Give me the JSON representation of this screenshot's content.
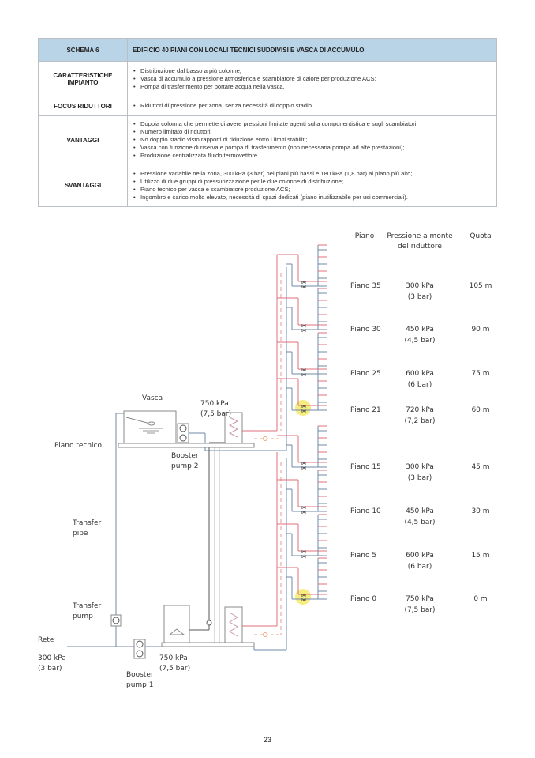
{
  "table": {
    "header": {
      "label": "SCHEMA 6",
      "title": "EDIFICIO 40 PIANI CON LOCALI TECNICI SUDDIVISI E VASCA DI ACCUMULO"
    },
    "rows": [
      {
        "label": "CARATTERISTICHE IMPIANTO",
        "items": [
          "Distribuzione dal basso a più colonne;",
          "Vasca di accumulo a pressione atmosferica e scambiatore di calore per produzione ACS;",
          "Pompa di trasferimento per portare acqua nella vasca."
        ]
      },
      {
        "label": "FOCUS RIDUTTORI",
        "items": [
          "Riduttori di pressione per zona, senza necessità di doppio stadio."
        ]
      },
      {
        "label": "VANTAGGI",
        "items": [
          "Doppia colonna che permette di avere pressioni limitate agenti sulla componentistica e sugli scambiatori;",
          "Numero limitato di riduttori;",
          "No doppio stadio visto rapporti di riduzione entro i limiti stabiliti;",
          "Vasca con funzione di riserva e pompa di trasferimento (non necessaria pompa ad alte prestazioni);",
          "Produzione centralizzata fluido termovettore."
        ]
      },
      {
        "label": "SVANTAGGI",
        "items": [
          "Pressione variabile nella zona, 300 kPa (3 bar) nei piani più bassi e 180 kPa (1,8 bar) al piano più alto;",
          "Utilizzo di due gruppi di pressurizzazione per le due colonne di distribuzione;",
          "Piano tecnico per vasca e scambiatore produzione ACS;",
          "Ingombro e carico molto elevato, necessità di spazi dedicati (piano inutilizzabile per usi commerciali)."
        ]
      }
    ]
  },
  "diagram": {
    "col_headers": {
      "piano": "Piano",
      "pressione_1": "Pressione a monte",
      "pressione_2": "del riduttore",
      "quota": "Quota"
    },
    "floors": [
      {
        "piano": "Piano 35",
        "kpa": "300 kPa",
        "bar": "(3 bar)",
        "quota": "105 m",
        "highlight": false
      },
      {
        "piano": "Piano 30",
        "kpa": "450 kPa",
        "bar": "(4,5 bar)",
        "quota": "90 m",
        "highlight": false
      },
      {
        "piano": "Piano 25",
        "kpa": "600 kPa",
        "bar": "(6 bar)",
        "quota": "75 m",
        "highlight": false
      },
      {
        "piano": "Piano 21",
        "kpa": "720 kPa",
        "bar": "(7,2 bar)",
        "quota": "60 m",
        "highlight": true
      },
      {
        "piano": "Piano 15",
        "kpa": "300 kPa",
        "bar": "(3 bar)",
        "quota": "45 m",
        "highlight": false
      },
      {
        "piano": "Piano 10",
        "kpa": "450 kPa",
        "bar": "(4,5 bar)",
        "quota": "30 m",
        "highlight": false
      },
      {
        "piano": "Piano 5",
        "kpa": "600 kPa",
        "bar": "(6 bar)",
        "quota": "15 m",
        "highlight": false
      },
      {
        "piano": "Piano 0",
        "kpa": "750 kPa",
        "bar": "(7,5 bar)",
        "quota": "0 m",
        "highlight": true
      }
    ],
    "labels": {
      "vasca": "Vasca",
      "upper_pressure_kpa": "750 kPa",
      "upper_pressure_bar": "(7,5 bar)",
      "piano_tecnico": "Piano tecnico",
      "booster2_1": "Booster",
      "booster2_2": "pump 2",
      "transfer_pipe_1": "Transfer",
      "transfer_pipe_2": "pipe",
      "transfer_pump_1": "Transfer",
      "transfer_pump_2": "pump",
      "rete": "Rete",
      "rete_kpa": "300 kPa",
      "rete_bar": "(3 bar)",
      "lower_pressure_kpa": "750 kPa",
      "lower_pressure_bar": "(7,5 bar)",
      "booster1_1": "Booster",
      "booster1_2": "pump 1"
    },
    "colors": {
      "hot": "#e0707a",
      "cold": "#6f89a8",
      "highlight": "#f3ea6a",
      "recirc": "#f2a77a"
    }
  },
  "page_number": "23"
}
